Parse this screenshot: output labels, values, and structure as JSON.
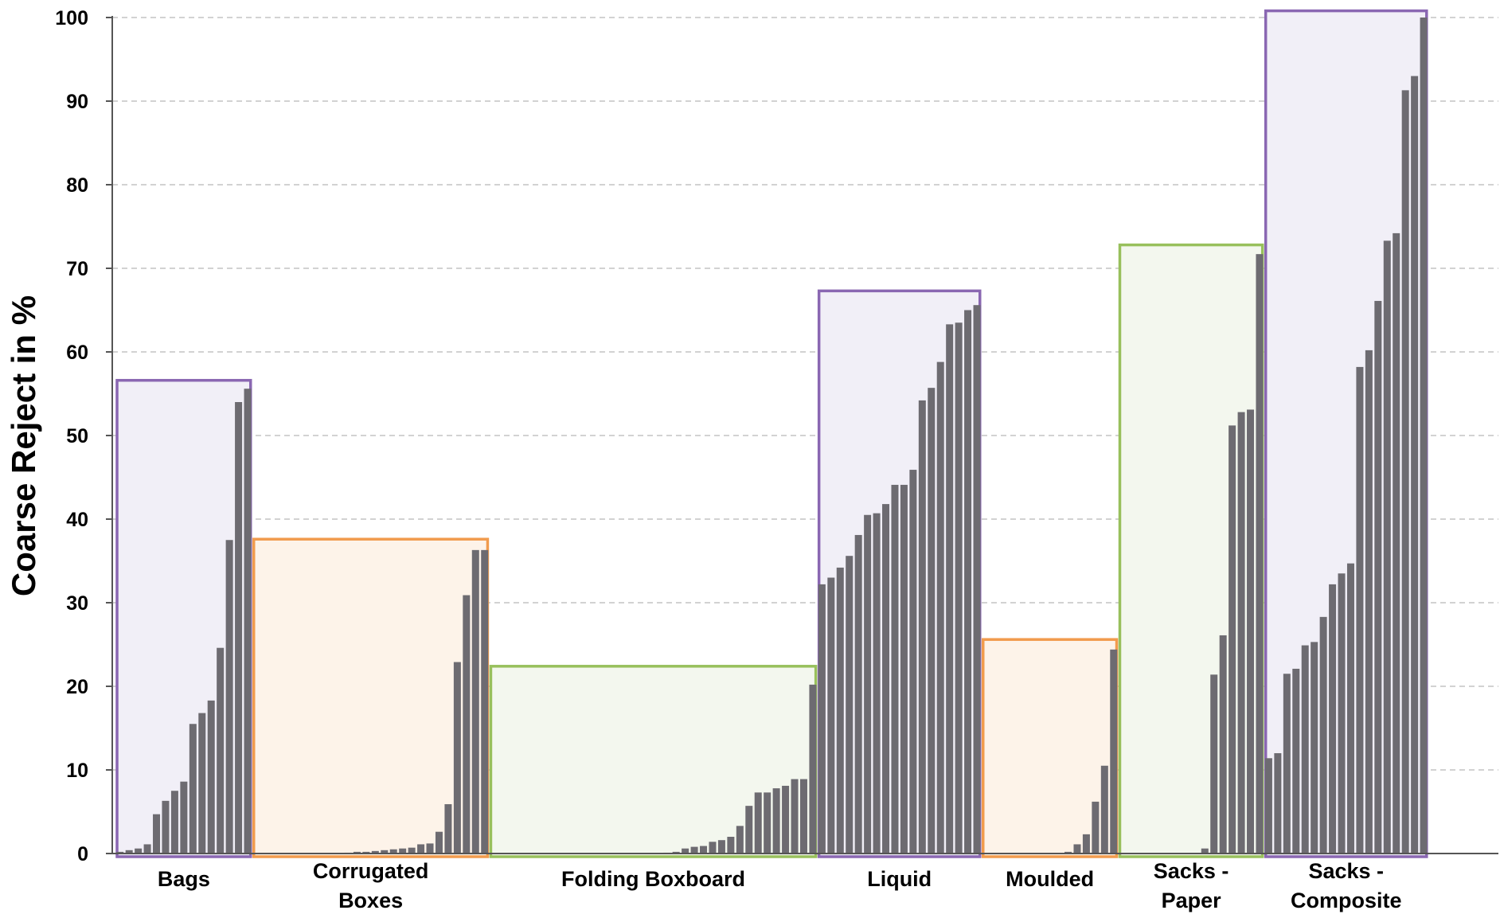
{
  "chart_data": {
    "type": "bar",
    "ylabel": "Coarse Reject in %",
    "xlabel": "",
    "ylim": [
      0,
      100
    ],
    "yticks": [
      0,
      10,
      20,
      30,
      40,
      50,
      60,
      70,
      80,
      90,
      100
    ],
    "grid": "horizontal-dashed",
    "bar_color": "#6d6b71",
    "groups": [
      {
        "label_lines": [
          "Bags"
        ],
        "fill": "#f1eff7",
        "stroke": "#8a67b2",
        "box_top": 56.6,
        "values": [
          0.2,
          0.4,
          0.6,
          1.1,
          4.7,
          6.3,
          7.5,
          8.6,
          15.5,
          16.8,
          18.3,
          24.6,
          37.5,
          54.0,
          55.6
        ]
      },
      {
        "label_lines": [
          "Corrugated",
          "Boxes"
        ],
        "fill": "#fdf3e9",
        "stroke": "#f19b4d",
        "box_top": 37.6,
        "values": [
          0,
          0,
          0,
          0,
          0,
          0,
          0,
          0,
          0,
          0,
          0.1,
          0.2,
          0.2,
          0.3,
          0.4,
          0.5,
          0.6,
          0.7,
          1.1,
          1.2,
          2.6,
          5.9,
          22.9,
          30.9,
          36.3,
          36.3
        ]
      },
      {
        "label_lines": [
          "Folding Boxboard"
        ],
        "fill": "#f3f7ee",
        "stroke": "#98c05c",
        "box_top": 22.4,
        "values": [
          0,
          0,
          0,
          0,
          0,
          0,
          0,
          0,
          0,
          0,
          0,
          0,
          0,
          0,
          0,
          0,
          0,
          0,
          0,
          0.1,
          0.2,
          0.6,
          0.8,
          0.9,
          1.4,
          1.6,
          2.0,
          3.3,
          5.7,
          7.3,
          7.3,
          7.8,
          8.1,
          8.9,
          8.9,
          20.2
        ]
      },
      {
        "label_lines": [
          "Liquid"
        ],
        "fill": "#f1eff7",
        "stroke": "#8a67b2",
        "box_top": 67.3,
        "values": [
          32.2,
          33.0,
          34.2,
          35.6,
          38.1,
          40.5,
          40.7,
          41.8,
          44.1,
          44.1,
          45.9,
          54.2,
          55.7,
          58.8,
          63.3,
          63.5,
          65.0,
          65.6
        ]
      },
      {
        "label_lines": [
          "Moulded"
        ],
        "fill": "#fdf3e9",
        "stroke": "#f19b4d",
        "box_top": 25.6,
        "values": [
          0,
          0,
          0,
          0,
          0,
          0,
          0,
          0,
          0,
          0.2,
          1.1,
          2.3,
          6.2,
          10.5,
          24.4
        ]
      },
      {
        "label_lines": [
          "Sacks -",
          "Paper"
        ],
        "fill": "#f3f7ee",
        "stroke": "#98c05c",
        "box_top": 72.8,
        "values": [
          0,
          0,
          0,
          0,
          0,
          0,
          0,
          0,
          0,
          0.6,
          21.4,
          26.1,
          51.2,
          52.8,
          53.1,
          71.7
        ]
      },
      {
        "label_lines": [
          "Sacks -",
          "Composite"
        ],
        "fill": "#f1eff7",
        "stroke": "#8a67b2",
        "box_top": 100.8,
        "values": [
          11.4,
          12.0,
          21.5,
          22.1,
          24.9,
          25.3,
          28.3,
          32.2,
          33.5,
          34.7,
          58.2,
          60.2,
          66.1,
          73.3,
          74.2,
          91.3,
          93.0,
          100.0
        ]
      }
    ]
  }
}
